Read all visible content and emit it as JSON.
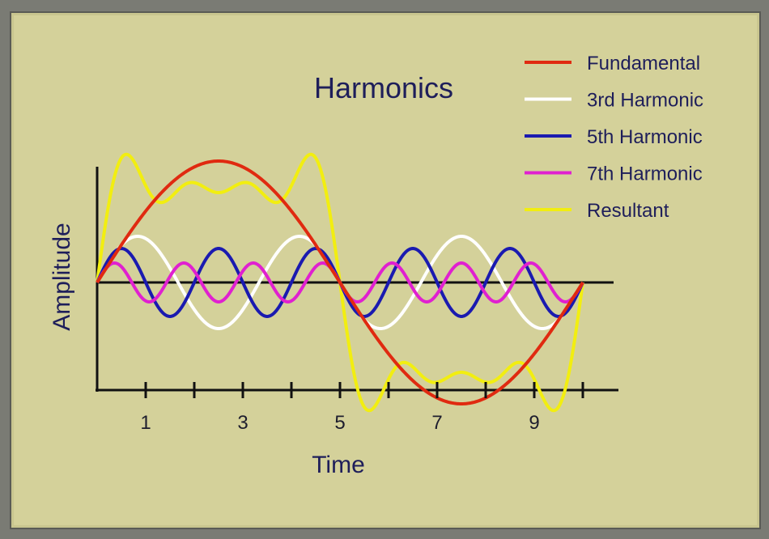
{
  "chart_data": {
    "type": "line",
    "title": "Harmonics",
    "xlabel": "Time",
    "ylabel": "Amplitude",
    "xlim": [
      0,
      10
    ],
    "ylim": [
      -1.05,
      1.2
    ],
    "xticks": [
      1,
      2,
      3,
      4,
      5,
      6,
      7,
      8,
      9,
      10
    ],
    "xtick_labels": [
      "1",
      "3",
      "5",
      "7",
      "9"
    ],
    "legend_position": "top-right",
    "grid": false,
    "series": [
      {
        "name": "Fundamental",
        "color": "#e02a10",
        "harmonic": 1,
        "amplitude": 1.0
      },
      {
        "name": "3rd Harmonic",
        "color": "#ffffff",
        "harmonic": 3,
        "amplitude": 0.38
      },
      {
        "name": "5th Harmonic",
        "color": "#1a1ab0",
        "harmonic": 5,
        "amplitude": 0.28
      },
      {
        "name": "7th Harmonic",
        "color": "#e020d0",
        "harmonic": 7,
        "amplitude": 0.16
      },
      {
        "name": "Resultant",
        "color": "#f2ee10",
        "harmonic": 0,
        "amplitude": 0.0
      }
    ]
  }
}
